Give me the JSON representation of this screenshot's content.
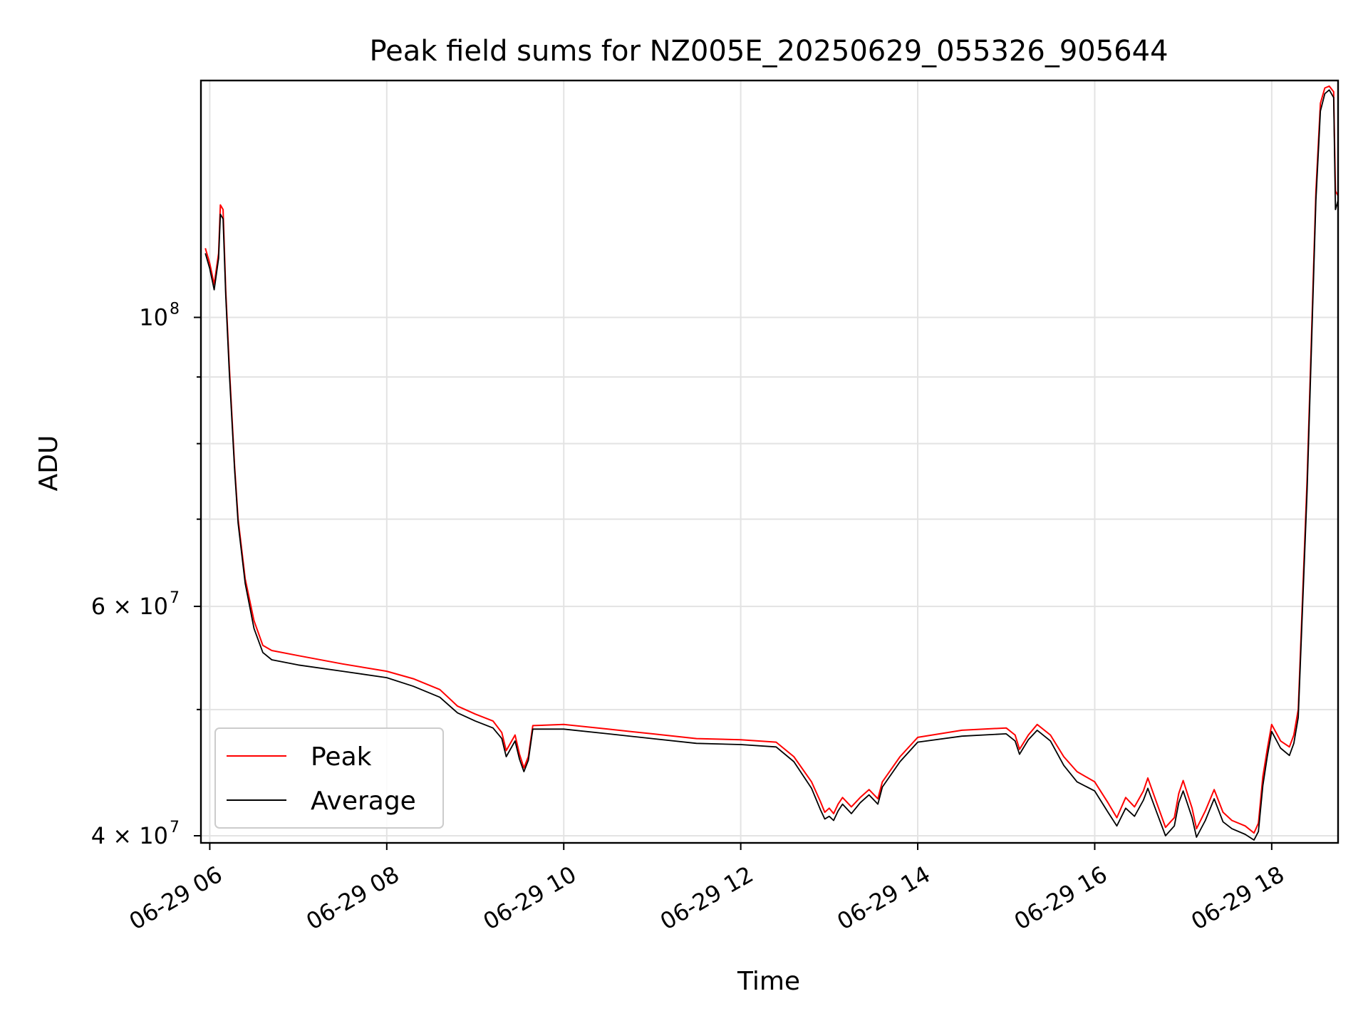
{
  "chart_data": {
    "type": "line",
    "title": "Peak field sums for NZ005E_20250629_055326_905644",
    "xlabel": "Time",
    "ylabel": "ADU",
    "x_ticks": [
      "06-29 06",
      "06-29 08",
      "06-29 10",
      "06-29 12",
      "06-29 14",
      "06-29 16",
      "06-29 18"
    ],
    "y_ticks": [
      {
        "value": 40000000,
        "base": "4 × 10",
        "exp": "7"
      },
      {
        "value": 60000000,
        "base": "6 × 10",
        "exp": "7"
      },
      {
        "value": 100000000,
        "base": "10",
        "exp": "8"
      }
    ],
    "x_range_hours": [
      5.9,
      18.75
    ],
    "y_range": [
      39500000,
      152000000
    ],
    "y_scale": "log",
    "grid": true,
    "legend_position": "lower-left",
    "series": [
      {
        "name": "Peak",
        "color": "#ff0000",
        "points": [
          [
            5.95,
            113000000
          ],
          [
            6.0,
            110000000
          ],
          [
            6.05,
            106000000
          ],
          [
            6.1,
            112000000
          ],
          [
            6.12,
            122000000
          ],
          [
            6.15,
            121000000
          ],
          [
            6.18,
            105000000
          ],
          [
            6.22,
            92000000
          ],
          [
            6.28,
            77000000
          ],
          [
            6.32,
            70000000
          ],
          [
            6.4,
            63000000
          ],
          [
            6.5,
            58500000
          ],
          [
            6.6,
            56000000
          ],
          [
            6.7,
            55500000
          ],
          [
            7.0,
            55000000
          ],
          [
            7.5,
            54200000
          ],
          [
            8.0,
            53500000
          ],
          [
            8.3,
            52800000
          ],
          [
            8.6,
            51800000
          ],
          [
            8.8,
            50300000
          ],
          [
            9.0,
            49600000
          ],
          [
            9.2,
            49000000
          ],
          [
            9.3,
            48000000
          ],
          [
            9.35,
            46500000
          ],
          [
            9.45,
            47800000
          ],
          [
            9.5,
            46200000
          ],
          [
            9.55,
            45100000
          ],
          [
            9.6,
            46000000
          ],
          [
            9.65,
            48600000
          ],
          [
            10.0,
            48700000
          ],
          [
            10.5,
            48300000
          ],
          [
            11.0,
            47900000
          ],
          [
            11.5,
            47500000
          ],
          [
            12.0,
            47400000
          ],
          [
            12.4,
            47200000
          ],
          [
            12.6,
            46000000
          ],
          [
            12.8,
            44000000
          ],
          [
            12.9,
            42500000
          ],
          [
            12.95,
            41700000
          ],
          [
            13.0,
            42000000
          ],
          [
            13.05,
            41600000
          ],
          [
            13.1,
            42300000
          ],
          [
            13.15,
            42800000
          ],
          [
            13.25,
            42100000
          ],
          [
            13.35,
            42800000
          ],
          [
            13.45,
            43400000
          ],
          [
            13.55,
            42700000
          ],
          [
            13.6,
            44000000
          ],
          [
            13.8,
            46000000
          ],
          [
            14.0,
            47600000
          ],
          [
            14.5,
            48200000
          ],
          [
            15.0,
            48400000
          ],
          [
            15.1,
            47800000
          ],
          [
            15.15,
            46600000
          ],
          [
            15.25,
            47800000
          ],
          [
            15.35,
            48700000
          ],
          [
            15.5,
            47800000
          ],
          [
            15.65,
            46000000
          ],
          [
            15.8,
            44800000
          ],
          [
            16.0,
            44000000
          ],
          [
            16.15,
            42400000
          ],
          [
            16.25,
            41300000
          ],
          [
            16.35,
            42800000
          ],
          [
            16.45,
            42100000
          ],
          [
            16.55,
            43300000
          ],
          [
            16.6,
            44300000
          ],
          [
            16.7,
            42400000
          ],
          [
            16.8,
            40600000
          ],
          [
            16.9,
            41300000
          ],
          [
            16.95,
            43100000
          ],
          [
            17.0,
            44100000
          ],
          [
            17.1,
            42000000
          ],
          [
            17.15,
            40500000
          ],
          [
            17.25,
            41800000
          ],
          [
            17.35,
            43400000
          ],
          [
            17.45,
            41700000
          ],
          [
            17.55,
            41100000
          ],
          [
            17.7,
            40700000
          ],
          [
            17.8,
            40200000
          ],
          [
            17.85,
            40900000
          ],
          [
            17.9,
            44400000
          ],
          [
            17.95,
            46600000
          ],
          [
            18.0,
            48700000
          ],
          [
            18.1,
            47300000
          ],
          [
            18.2,
            46800000
          ],
          [
            18.25,
            47800000
          ],
          [
            18.3,
            50000000
          ],
          [
            18.4,
            75000000
          ],
          [
            18.5,
            125000000
          ],
          [
            18.55,
            146000000
          ],
          [
            18.6,
            150000000
          ],
          [
            18.65,
            150500000
          ],
          [
            18.7,
            149000000
          ],
          [
            18.72,
            125000000
          ],
          [
            18.75,
            124000000
          ]
        ]
      },
      {
        "name": "Average",
        "color": "#000000",
        "points": [
          [
            5.95,
            112000000
          ],
          [
            6.0,
            109000000
          ],
          [
            6.05,
            105000000
          ],
          [
            6.1,
            111000000
          ],
          [
            6.12,
            120000000
          ],
          [
            6.15,
            119000000
          ],
          [
            6.18,
            104000000
          ],
          [
            6.22,
            91000000
          ],
          [
            6.28,
            76500000
          ],
          [
            6.32,
            69500000
          ],
          [
            6.4,
            62500000
          ],
          [
            6.5,
            57700000
          ],
          [
            6.6,
            55300000
          ],
          [
            6.7,
            54600000
          ],
          [
            7.0,
            54100000
          ],
          [
            7.5,
            53500000
          ],
          [
            8.0,
            52900000
          ],
          [
            8.3,
            52100000
          ],
          [
            8.6,
            51100000
          ],
          [
            8.8,
            49700000
          ],
          [
            9.0,
            49000000
          ],
          [
            9.2,
            48400000
          ],
          [
            9.3,
            47500000
          ],
          [
            9.35,
            46000000
          ],
          [
            9.45,
            47300000
          ],
          [
            9.5,
            45800000
          ],
          [
            9.55,
            44800000
          ],
          [
            9.6,
            45700000
          ],
          [
            9.65,
            48300000
          ],
          [
            10.0,
            48300000
          ],
          [
            10.5,
            47900000
          ],
          [
            11.0,
            47500000
          ],
          [
            11.5,
            47100000
          ],
          [
            12.0,
            47000000
          ],
          [
            12.4,
            46800000
          ],
          [
            12.6,
            45600000
          ],
          [
            12.8,
            43500000
          ],
          [
            12.9,
            41900000
          ],
          [
            12.95,
            41200000
          ],
          [
            13.0,
            41400000
          ],
          [
            13.05,
            41100000
          ],
          [
            13.1,
            41800000
          ],
          [
            13.15,
            42300000
          ],
          [
            13.25,
            41600000
          ],
          [
            13.35,
            42400000
          ],
          [
            13.45,
            43000000
          ],
          [
            13.55,
            42300000
          ],
          [
            13.6,
            43600000
          ],
          [
            13.8,
            45600000
          ],
          [
            14.0,
            47200000
          ],
          [
            14.5,
            47700000
          ],
          [
            15.0,
            47900000
          ],
          [
            15.1,
            47300000
          ],
          [
            15.15,
            46200000
          ],
          [
            15.25,
            47400000
          ],
          [
            15.35,
            48200000
          ],
          [
            15.5,
            47300000
          ],
          [
            15.65,
            45300000
          ],
          [
            15.8,
            44000000
          ],
          [
            16.0,
            43300000
          ],
          [
            16.15,
            41700000
          ],
          [
            16.25,
            40700000
          ],
          [
            16.35,
            42000000
          ],
          [
            16.45,
            41400000
          ],
          [
            16.55,
            42600000
          ],
          [
            16.6,
            43500000
          ],
          [
            16.7,
            41700000
          ],
          [
            16.8,
            40000000
          ],
          [
            16.9,
            40700000
          ],
          [
            16.95,
            42400000
          ],
          [
            17.0,
            43300000
          ],
          [
            17.1,
            41300000
          ],
          [
            17.15,
            39900000
          ],
          [
            17.25,
            41100000
          ],
          [
            17.35,
            42700000
          ],
          [
            17.45,
            41000000
          ],
          [
            17.55,
            40500000
          ],
          [
            17.7,
            40100000
          ],
          [
            17.8,
            39700000
          ],
          [
            17.85,
            40300000
          ],
          [
            17.9,
            43700000
          ],
          [
            17.95,
            46000000
          ],
          [
            18.0,
            48100000
          ],
          [
            18.1,
            46700000
          ],
          [
            18.2,
            46100000
          ],
          [
            18.25,
            47100000
          ],
          [
            18.3,
            49300000
          ],
          [
            18.4,
            73500000
          ],
          [
            18.5,
            123000000
          ],
          [
            18.55,
            144000000
          ],
          [
            18.6,
            148500000
          ],
          [
            18.65,
            149500000
          ],
          [
            18.7,
            147500000
          ],
          [
            18.72,
            121000000
          ],
          [
            18.75,
            123000000
          ]
        ]
      }
    ]
  }
}
